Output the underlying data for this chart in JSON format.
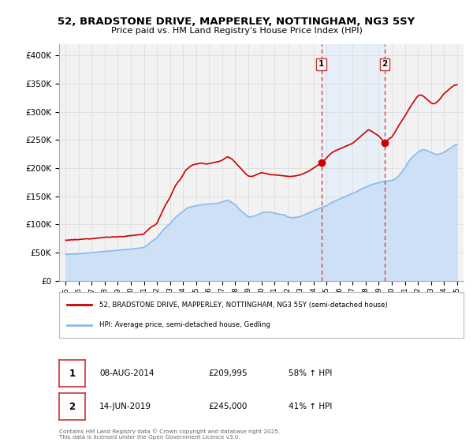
{
  "title": "52, BRADSTONE DRIVE, MAPPERLEY, NOTTINGHAM, NG3 5SY",
  "subtitle": "Price paid vs. HM Land Registry's House Price Index (HPI)",
  "background_color": "#ffffff",
  "plot_bg_color": "#f2f2f2",
  "grid_color": "#dddddd",
  "ylim": [
    0,
    420000
  ],
  "xlim": [
    1994.5,
    2025.5
  ],
  "yticks": [
    0,
    50000,
    100000,
    150000,
    200000,
    250000,
    300000,
    350000,
    400000
  ],
  "ytick_labels": [
    "£0",
    "£50K",
    "£100K",
    "£150K",
    "£200K",
    "£250K",
    "£300K",
    "£350K",
    "£400K"
  ],
  "xticks": [
    1995,
    1996,
    1997,
    1998,
    1999,
    2000,
    2001,
    2002,
    2003,
    2004,
    2005,
    2006,
    2007,
    2008,
    2009,
    2010,
    2011,
    2012,
    2013,
    2014,
    2015,
    2016,
    2017,
    2018,
    2019,
    2020,
    2021,
    2022,
    2023,
    2024,
    2025
  ],
  "sale1_x": 2014.6,
  "sale1_y": 209995,
  "sale1_label": "1",
  "sale1_date": "08-AUG-2014",
  "sale1_price": "£209,995",
  "sale1_hpi": "58% ↑ HPI",
  "sale2_x": 2019.45,
  "sale2_y": 245000,
  "sale2_label": "2",
  "sale2_date": "14-JUN-2019",
  "sale2_price": "£245,000",
  "sale2_hpi": "41% ↑ HPI",
  "vline_color": "#cc3333",
  "vline_style": "--",
  "house_line_color": "#cc0000",
  "hpi_line_color": "#88bbee",
  "hpi_fill_color": "#cde0f5",
  "legend_label_house": "52, BRADSTONE DRIVE, MAPPERLEY, NOTTINGHAM, NG3 5SY (semi-detached house)",
  "legend_label_hpi": "HPI: Average price, semi-detached house, Gedling",
  "footer": "Contains HM Land Registry data © Crown copyright and database right 2025.\nThis data is licensed under the Open Government Licence v3.0.",
  "house_prices": [
    [
      1995.0,
      72000
    ],
    [
      1995.1,
      71500
    ],
    [
      1995.2,
      72500
    ],
    [
      1995.3,
      72000
    ],
    [
      1995.4,
      72500
    ],
    [
      1995.5,
      73000
    ],
    [
      1995.6,
      72000
    ],
    [
      1995.7,
      73500
    ],
    [
      1995.8,
      72500
    ],
    [
      1995.9,
      73000
    ],
    [
      1996.0,
      73000
    ],
    [
      1996.2,
      73500
    ],
    [
      1996.4,
      74000
    ],
    [
      1996.6,
      74500
    ],
    [
      1996.8,
      74000
    ],
    [
      1997.0,
      74500
    ],
    [
      1997.2,
      75000
    ],
    [
      1997.4,
      75500
    ],
    [
      1997.6,
      76000
    ],
    [
      1997.8,
      76500
    ],
    [
      1998.0,
      77000
    ],
    [
      1998.2,
      77500
    ],
    [
      1998.4,
      77000
    ],
    [
      1998.6,
      78000
    ],
    [
      1998.8,
      77500
    ],
    [
      1999.0,
      78000
    ],
    [
      1999.2,
      78500
    ],
    [
      1999.4,
      78000
    ],
    [
      1999.6,
      79000
    ],
    [
      1999.8,
      79500
    ],
    [
      2000.0,
      80000
    ],
    [
      2000.2,
      80500
    ],
    [
      2000.4,
      81000
    ],
    [
      2000.6,
      81500
    ],
    [
      2000.8,
      82000
    ],
    [
      2001.0,
      83000
    ],
    [
      2001.2,
      88000
    ],
    [
      2001.4,
      92000
    ],
    [
      2001.6,
      96000
    ],
    [
      2001.8,
      98000
    ],
    [
      2002.0,
      102000
    ],
    [
      2002.2,
      112000
    ],
    [
      2002.4,
      122000
    ],
    [
      2002.6,
      132000
    ],
    [
      2002.8,
      140000
    ],
    [
      2003.0,
      148000
    ],
    [
      2003.2,
      158000
    ],
    [
      2003.4,
      168000
    ],
    [
      2003.6,
      175000
    ],
    [
      2003.8,
      180000
    ],
    [
      2004.0,
      188000
    ],
    [
      2004.2,
      196000
    ],
    [
      2004.4,
      200000
    ],
    [
      2004.6,
      204000
    ],
    [
      2004.8,
      206000
    ],
    [
      2005.0,
      207000
    ],
    [
      2005.2,
      208000
    ],
    [
      2005.4,
      209000
    ],
    [
      2005.6,
      208000
    ],
    [
      2005.8,
      207000
    ],
    [
      2006.0,
      208000
    ],
    [
      2006.2,
      209000
    ],
    [
      2006.4,
      210000
    ],
    [
      2006.6,
      211000
    ],
    [
      2006.8,
      212000
    ],
    [
      2007.0,
      214000
    ],
    [
      2007.2,
      217000
    ],
    [
      2007.4,
      220000
    ],
    [
      2007.6,
      218000
    ],
    [
      2007.8,
      215000
    ],
    [
      2008.0,
      210000
    ],
    [
      2008.2,
      205000
    ],
    [
      2008.4,
      200000
    ],
    [
      2008.6,
      195000
    ],
    [
      2008.8,
      190000
    ],
    [
      2009.0,
      186000
    ],
    [
      2009.2,
      185000
    ],
    [
      2009.4,
      186000
    ],
    [
      2009.6,
      188000
    ],
    [
      2009.8,
      190000
    ],
    [
      2010.0,
      192000
    ],
    [
      2010.2,
      191000
    ],
    [
      2010.4,
      190000
    ],
    [
      2010.6,
      189000
    ],
    [
      2010.8,
      188000
    ],
    [
      2011.0,
      188000
    ],
    [
      2011.2,
      187500
    ],
    [
      2011.4,
      187000
    ],
    [
      2011.6,
      186500
    ],
    [
      2011.8,
      186000
    ],
    [
      2012.0,
      185500
    ],
    [
      2012.2,
      185000
    ],
    [
      2012.4,
      185500
    ],
    [
      2012.6,
      186000
    ],
    [
      2012.8,
      187000
    ],
    [
      2013.0,
      188000
    ],
    [
      2013.2,
      190000
    ],
    [
      2013.4,
      192000
    ],
    [
      2013.6,
      194000
    ],
    [
      2013.8,
      197000
    ],
    [
      2014.0,
      200000
    ],
    [
      2014.2,
      203000
    ],
    [
      2014.4,
      206000
    ],
    [
      2014.6,
      209995
    ],
    [
      2014.8,
      213000
    ],
    [
      2015.0,
      218000
    ],
    [
      2015.2,
      223000
    ],
    [
      2015.4,
      227000
    ],
    [
      2015.6,
      230000
    ],
    [
      2015.8,
      232000
    ],
    [
      2016.0,
      234000
    ],
    [
      2016.2,
      236000
    ],
    [
      2016.4,
      238000
    ],
    [
      2016.6,
      240000
    ],
    [
      2016.8,
      242000
    ],
    [
      2017.0,
      244000
    ],
    [
      2017.2,
      248000
    ],
    [
      2017.4,
      252000
    ],
    [
      2017.6,
      256000
    ],
    [
      2017.8,
      260000
    ],
    [
      2018.0,
      264000
    ],
    [
      2018.2,
      268000
    ],
    [
      2018.4,
      266000
    ],
    [
      2018.6,
      263000
    ],
    [
      2018.8,
      260000
    ],
    [
      2019.0,
      257000
    ],
    [
      2019.2,
      252000
    ],
    [
      2019.45,
      245000
    ],
    [
      2019.6,
      248000
    ],
    [
      2019.8,
      252000
    ],
    [
      2020.0,
      255000
    ],
    [
      2020.2,
      262000
    ],
    [
      2020.4,
      270000
    ],
    [
      2020.6,
      278000
    ],
    [
      2020.8,
      285000
    ],
    [
      2021.0,
      292000
    ],
    [
      2021.2,
      300000
    ],
    [
      2021.4,
      308000
    ],
    [
      2021.6,
      315000
    ],
    [
      2021.8,
      322000
    ],
    [
      2022.0,
      328000
    ],
    [
      2022.2,
      330000
    ],
    [
      2022.4,
      328000
    ],
    [
      2022.6,
      324000
    ],
    [
      2022.8,
      320000
    ],
    [
      2023.0,
      316000
    ],
    [
      2023.2,
      314000
    ],
    [
      2023.4,
      316000
    ],
    [
      2023.6,
      320000
    ],
    [
      2023.8,
      326000
    ],
    [
      2024.0,
      332000
    ],
    [
      2024.2,
      336000
    ],
    [
      2024.4,
      340000
    ],
    [
      2024.6,
      344000
    ],
    [
      2024.8,
      347000
    ],
    [
      2025.0,
      348000
    ]
  ],
  "hpi_prices": [
    [
      1995.0,
      47000
    ],
    [
      1995.1,
      46800
    ],
    [
      1995.2,
      47100
    ],
    [
      1995.3,
      46900
    ],
    [
      1995.4,
      47200
    ],
    [
      1995.5,
      47300
    ],
    [
      1995.6,
      47100
    ],
    [
      1995.7,
      47400
    ],
    [
      1995.8,
      47200
    ],
    [
      1995.9,
      47500
    ],
    [
      1996.0,
      47800
    ],
    [
      1996.2,
      48200
    ],
    [
      1996.4,
      48600
    ],
    [
      1996.6,
      49000
    ],
    [
      1996.8,
      49300
    ],
    [
      1997.0,
      49700
    ],
    [
      1997.2,
      50200
    ],
    [
      1997.4,
      50700
    ],
    [
      1997.6,
      51200
    ],
    [
      1997.8,
      51600
    ],
    [
      1998.0,
      52000
    ],
    [
      1998.2,
      52400
    ],
    [
      1998.4,
      52800
    ],
    [
      1998.6,
      53200
    ],
    [
      1998.8,
      53600
    ],
    [
      1999.0,
      54000
    ],
    [
      1999.2,
      54400
    ],
    [
      1999.4,
      54800
    ],
    [
      1999.6,
      55200
    ],
    [
      1999.8,
      55600
    ],
    [
      2000.0,
      56000
    ],
    [
      2000.2,
      56500
    ],
    [
      2000.4,
      57200
    ],
    [
      2000.6,
      57800
    ],
    [
      2000.8,
      58400
    ],
    [
      2001.0,
      59200
    ],
    [
      2001.2,
      62000
    ],
    [
      2001.4,
      66000
    ],
    [
      2001.6,
      70000
    ],
    [
      2001.8,
      73000
    ],
    [
      2002.0,
      76000
    ],
    [
      2002.2,
      82000
    ],
    [
      2002.4,
      88000
    ],
    [
      2002.6,
      93000
    ],
    [
      2002.8,
      97000
    ],
    [
      2003.0,
      101000
    ],
    [
      2003.2,
      107000
    ],
    [
      2003.4,
      112000
    ],
    [
      2003.6,
      116000
    ],
    [
      2003.8,
      120000
    ],
    [
      2004.0,
      123000
    ],
    [
      2004.2,
      127000
    ],
    [
      2004.4,
      130000
    ],
    [
      2004.6,
      131000
    ],
    [
      2004.8,
      132000
    ],
    [
      2005.0,
      133000
    ],
    [
      2005.2,
      134000
    ],
    [
      2005.4,
      135000
    ],
    [
      2005.6,
      135500
    ],
    [
      2005.8,
      135800
    ],
    [
      2006.0,
      136000
    ],
    [
      2006.2,
      136500
    ],
    [
      2006.4,
      137000
    ],
    [
      2006.6,
      137500
    ],
    [
      2006.8,
      138500
    ],
    [
      2007.0,
      140000
    ],
    [
      2007.2,
      141500
    ],
    [
      2007.4,
      143000
    ],
    [
      2007.6,
      141000
    ],
    [
      2007.8,
      138000
    ],
    [
      2008.0,
      135000
    ],
    [
      2008.2,
      130000
    ],
    [
      2008.4,
      125000
    ],
    [
      2008.6,
      121000
    ],
    [
      2008.8,
      117000
    ],
    [
      2009.0,
      113000
    ],
    [
      2009.2,
      113500
    ],
    [
      2009.4,
      114500
    ],
    [
      2009.6,
      116000
    ],
    [
      2009.8,
      118000
    ],
    [
      2010.0,
      120000
    ],
    [
      2010.2,
      121500
    ],
    [
      2010.4,
      122000
    ],
    [
      2010.6,
      121500
    ],
    [
      2010.8,
      121000
    ],
    [
      2011.0,
      120000
    ],
    [
      2011.2,
      119000
    ],
    [
      2011.4,
      118000
    ],
    [
      2011.6,
      117500
    ],
    [
      2011.8,
      117000
    ],
    [
      2012.0,
      113000
    ],
    [
      2012.2,
      112500
    ],
    [
      2012.4,
      112000
    ],
    [
      2012.6,
      112500
    ],
    [
      2012.8,
      113000
    ],
    [
      2013.0,
      114000
    ],
    [
      2013.2,
      116000
    ],
    [
      2013.4,
      118000
    ],
    [
      2013.6,
      120000
    ],
    [
      2013.8,
      122000
    ],
    [
      2014.0,
      124000
    ],
    [
      2014.2,
      126000
    ],
    [
      2014.4,
      128000
    ],
    [
      2014.6,
      130000
    ],
    [
      2014.8,
      131500
    ],
    [
      2015.0,
      133000
    ],
    [
      2015.2,
      136000
    ],
    [
      2015.4,
      139000
    ],
    [
      2015.6,
      141000
    ],
    [
      2015.8,
      143000
    ],
    [
      2016.0,
      145000
    ],
    [
      2016.2,
      147000
    ],
    [
      2016.4,
      149000
    ],
    [
      2016.6,
      151000
    ],
    [
      2016.8,
      153000
    ],
    [
      2017.0,
      155000
    ],
    [
      2017.2,
      157000
    ],
    [
      2017.4,
      159500
    ],
    [
      2017.6,
      162000
    ],
    [
      2017.8,
      164000
    ],
    [
      2018.0,
      166000
    ],
    [
      2018.2,
      168000
    ],
    [
      2018.4,
      170000
    ],
    [
      2018.6,
      171500
    ],
    [
      2018.8,
      173000
    ],
    [
      2019.0,
      174000
    ],
    [
      2019.2,
      175500
    ],
    [
      2019.4,
      176500
    ],
    [
      2019.6,
      177000
    ],
    [
      2019.8,
      177500
    ],
    [
      2020.0,
      178000
    ],
    [
      2020.2,
      180000
    ],
    [
      2020.4,
      183000
    ],
    [
      2020.6,
      188000
    ],
    [
      2020.8,
      194000
    ],
    [
      2021.0,
      200000
    ],
    [
      2021.2,
      208000
    ],
    [
      2021.4,
      215000
    ],
    [
      2021.6,
      220000
    ],
    [
      2021.8,
      224000
    ],
    [
      2022.0,
      228000
    ],
    [
      2022.2,
      231000
    ],
    [
      2022.4,
      233000
    ],
    [
      2022.6,
      232000
    ],
    [
      2022.8,
      230000
    ],
    [
      2023.0,
      228000
    ],
    [
      2023.2,
      226000
    ],
    [
      2023.4,
      224000
    ],
    [
      2023.6,
      224500
    ],
    [
      2023.8,
      226000
    ],
    [
      2024.0,
      228000
    ],
    [
      2024.2,
      231000
    ],
    [
      2024.4,
      234000
    ],
    [
      2024.6,
      237000
    ],
    [
      2024.8,
      240000
    ],
    [
      2025.0,
      242000
    ]
  ]
}
